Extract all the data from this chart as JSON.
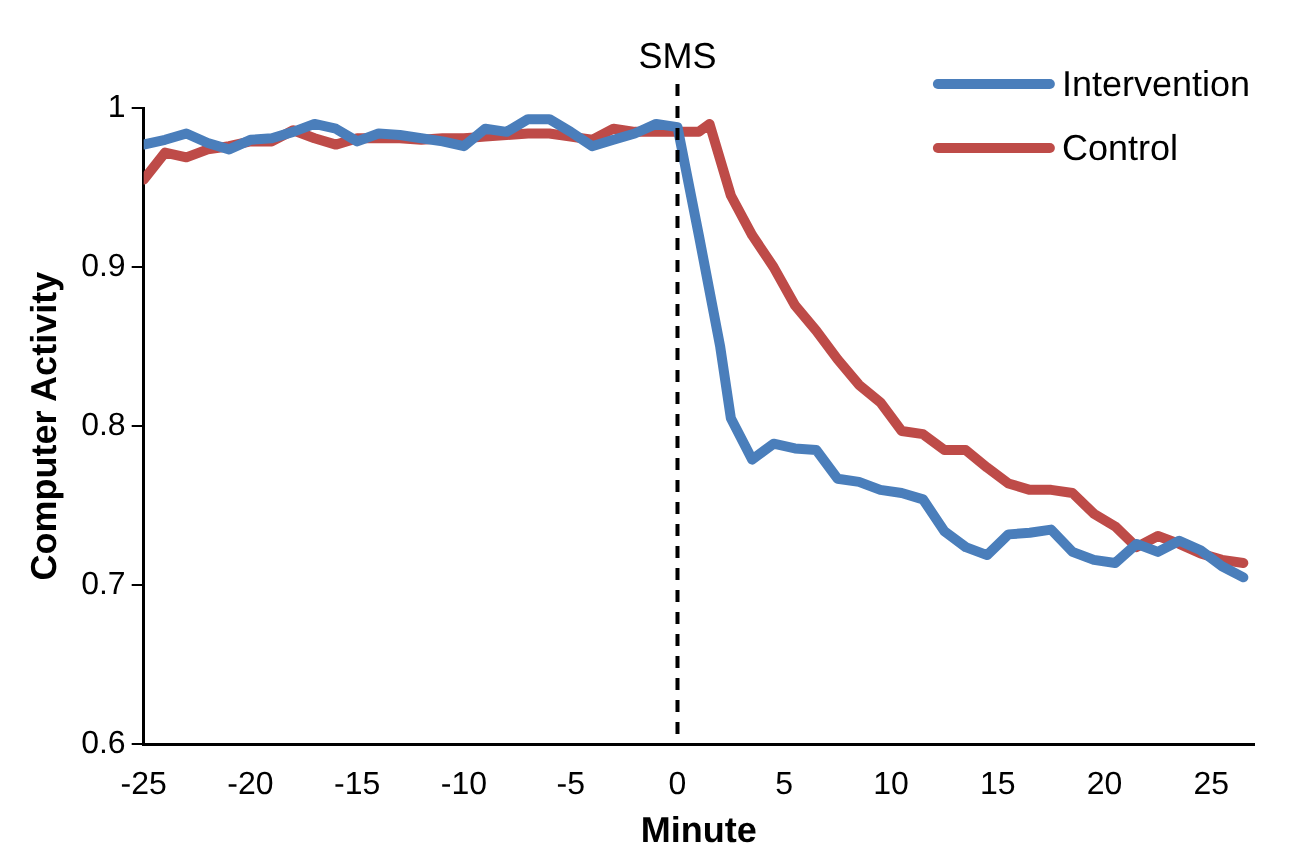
{
  "chart_data": {
    "type": "line",
    "xlabel": "Minute",
    "ylabel": "Computer Activity",
    "xlim": [
      -25,
      27
    ],
    "xticks": [
      -25,
      -20,
      -15,
      -10,
      -5,
      0,
      5,
      10,
      15,
      20,
      25
    ],
    "ylim": [
      0.6,
      1
    ],
    "yticks": [
      0.6,
      0.7,
      0.8,
      0.9,
      1
    ],
    "grid": false,
    "legend": "top right",
    "marker": "none",
    "line_style": "solid",
    "ref_lines": [
      {
        "axis": "x",
        "value": 0,
        "label": "SMS",
        "line_style": "dashed",
        "color": "#000000"
      }
    ],
    "series": [
      {
        "name": "Intervention",
        "color": "#4a7ebb",
        "x": [
          -25,
          -24,
          -23,
          -22,
          -21,
          -20,
          -19,
          -18,
          -17,
          -16,
          -15,
          -14,
          -13,
          -12,
          -11,
          -10,
          -9,
          -8,
          -7,
          -6,
          -5,
          -4,
          -3,
          -2,
          -1,
          0,
          1,
          2,
          2.5,
          3.5,
          4.5,
          5.5,
          6.5,
          7.5,
          8.5,
          9.5,
          10.5,
          11.5,
          12.5,
          13.5,
          14.5,
          15.5,
          16.5,
          17.5,
          18.5,
          19.5,
          20.5,
          21.5,
          22.5,
          23.5,
          24.5,
          25.5,
          26.5
        ],
        "values": [
          0.977,
          0.98,
          0.984,
          0.978,
          0.974,
          0.98,
          0.981,
          0.985,
          0.99,
          0.987,
          0.979,
          0.984,
          0.983,
          0.981,
          0.979,
          0.976,
          0.987,
          0.985,
          0.993,
          0.993,
          0.985,
          0.976,
          0.98,
          0.984,
          0.99,
          0.988,
          0.92,
          0.85,
          0.805,
          0.779,
          0.789,
          0.786,
          0.785,
          0.767,
          0.765,
          0.76,
          0.758,
          0.754,
          0.734,
          0.724,
          0.719,
          0.732,
          0.733,
          0.735,
          0.721,
          0.716,
          0.714,
          0.726,
          0.721,
          0.728,
          0.722,
          0.712,
          0.705
        ]
      },
      {
        "name": "Control",
        "color": "#be4b48",
        "x": [
          -25,
          -24,
          -23,
          -22,
          -21,
          -20,
          -19,
          -18,
          -17,
          -16,
          -15,
          -14,
          -13,
          -12,
          -11,
          -10,
          -9,
          -8,
          -7,
          -6,
          -5,
          -4,
          -3,
          -2,
          -1,
          0,
          1,
          1.5,
          2.5,
          3.5,
          4.5,
          5.5,
          6.5,
          7.5,
          8.5,
          9.5,
          10.5,
          11.5,
          12.5,
          13.5,
          14.5,
          15.5,
          16.5,
          17.5,
          18.5,
          19.5,
          20.5,
          21.5,
          22.5,
          23.5,
          24.5,
          25.5,
          26.5
        ],
        "values": [
          0.955,
          0.972,
          0.969,
          0.974,
          0.976,
          0.979,
          0.979,
          0.986,
          0.981,
          0.977,
          0.981,
          0.981,
          0.981,
          0.98,
          0.981,
          0.981,
          0.982,
          0.983,
          0.984,
          0.984,
          0.982,
          0.98,
          0.987,
          0.985,
          0.985,
          0.985,
          0.985,
          0.99,
          0.945,
          0.92,
          0.9,
          0.876,
          0.86,
          0.842,
          0.826,
          0.815,
          0.797,
          0.795,
          0.785,
          0.785,
          0.774,
          0.764,
          0.76,
          0.76,
          0.758,
          0.745,
          0.737,
          0.724,
          0.731,
          0.726,
          0.72,
          0.716,
          0.714
        ]
      }
    ]
  }
}
